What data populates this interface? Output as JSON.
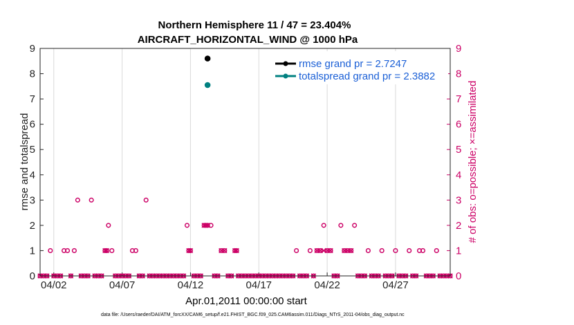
{
  "chart_data": {
    "type": "scatter",
    "title": "Northern Hemisphere 11 / 47 = 23.404%",
    "subtitle": "AIRCRAFT_HORIZONTAL_WIND @ 1000 hPa",
    "xlabel": "Apr.01,2011 00:00:00 start",
    "ylabel_left": "rmse and totalspread",
    "ylabel_right": "# of obs: o=possible; ×=assimilated",
    "xlim": [
      1.0,
      31.0
    ],
    "ylim": [
      0,
      9
    ],
    "x_ticks": [
      {
        "value": 2,
        "label": "04/02"
      },
      {
        "value": 7,
        "label": "04/07"
      },
      {
        "value": 12,
        "label": "04/12"
      },
      {
        "value": 17,
        "label": "04/17"
      },
      {
        "value": 22,
        "label": "04/22"
      },
      {
        "value": 27,
        "label": "04/27"
      }
    ],
    "y_ticks": [
      0,
      1,
      2,
      3,
      4,
      5,
      6,
      7,
      8,
      9
    ],
    "grid": true,
    "legend_position": "top-right",
    "colors": {
      "rmse": "#000000",
      "totalspread": "#008080",
      "obs": "#cc0066",
      "grid": "#d9d9d9",
      "spread_text": "#1a5fd6"
    },
    "series": [
      {
        "name": "rmse grand pr = 2.7247",
        "marker": "filled-circle",
        "x": [
          13.25
        ],
        "y": [
          8.6
        ]
      },
      {
        "name": "totalspread grand pr = 2.3882",
        "marker": "filled-circle",
        "x": [
          13.25
        ],
        "y": [
          7.55
        ]
      },
      {
        "role": "possible",
        "marker": "open-circle",
        "x": [
          1.75,
          2.75,
          3.0,
          3.5,
          3.75,
          4.75,
          5.75,
          5.875,
          6.0,
          6.25,
          7.75,
          8.0,
          8.75,
          11.75,
          11.875,
          12.0,
          13.0,
          13.125,
          13.25,
          13.5,
          14.25,
          14.5,
          15.25,
          15.375,
          19.75,
          20.75,
          21.25,
          21.5,
          21.75,
          22.0,
          22.25,
          23.0,
          23.25,
          23.5,
          23.75,
          24.0,
          25.0,
          26.0,
          27.0,
          28.0,
          28.75,
          29.0,
          30.0
        ],
        "y": [
          1,
          1,
          1,
          1,
          3,
          3,
          1,
          1,
          2,
          1,
          1,
          1,
          3,
          2,
          1,
          1,
          2,
          2,
          2,
          2,
          1,
          1,
          1,
          1,
          1,
          1,
          1,
          1,
          2,
          1,
          1,
          2,
          1,
          1,
          1,
          2,
          1,
          1,
          1,
          1,
          1,
          1,
          1
        ]
      },
      {
        "role": "assimilated",
        "marker": "cross",
        "x": [
          5.75,
          5.875,
          11.875,
          12.0,
          13.0,
          13.125,
          13.25,
          14.25,
          14.5,
          15.25,
          15.375,
          21.25,
          21.5,
          21.75,
          22.0,
          22.25,
          23.25,
          23.5,
          23.75
        ],
        "y": [
          1,
          1,
          1,
          1,
          2,
          2,
          2,
          1,
          1,
          1,
          1,
          1,
          1,
          1,
          1,
          1,
          1,
          1,
          1
        ]
      }
    ],
    "zero_obs_interval": 0.25,
    "footer": "data file: /Users/raeder/DAI/ATM_forcXX/CAM6_setup/f.e21.FHIST_BGC.f09_025.CAM6assim.011/Diags_NTrS_2011-04/obs_diag_output.nc"
  }
}
